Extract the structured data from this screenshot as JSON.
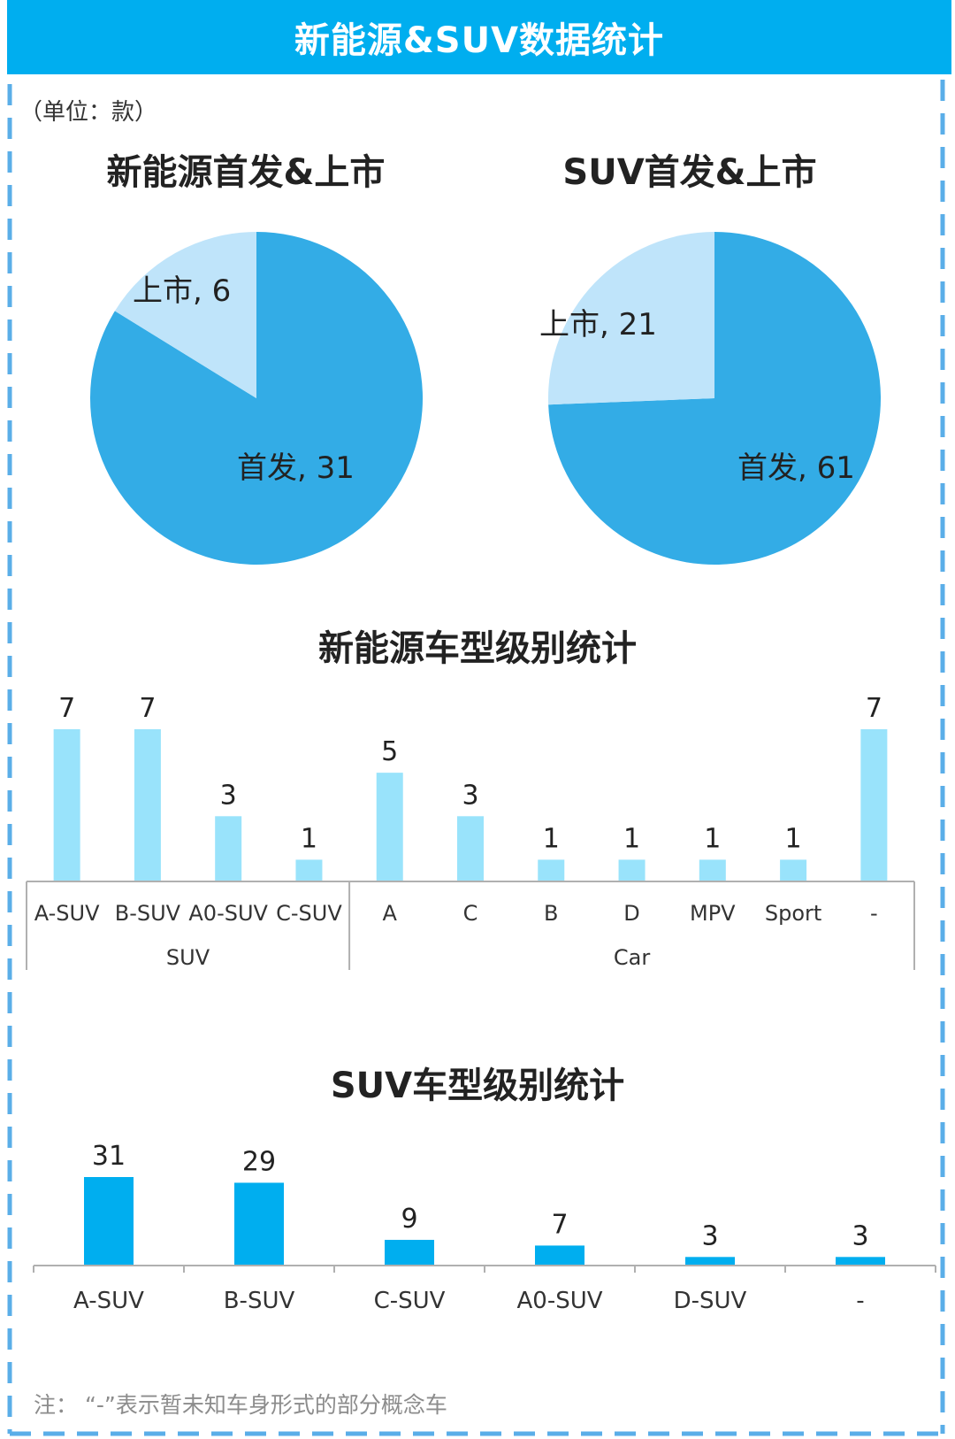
{
  "header": {
    "title": "新能源&SUV数据统计"
  },
  "unit_label": "（单位：款）",
  "footnote": "注：  “-”表示暂未知车身形式的部分概念车",
  "colors": {
    "primary": "#00aeef",
    "pie_dark": "#33ace6",
    "pie_light": "#bfe4fa",
    "bar_light": "#99e3fb",
    "bar_dark": "#00aeef"
  },
  "chart_data": [
    {
      "type": "pie",
      "title": "新能源首发&上市",
      "slices": [
        {
          "label": "首发",
          "value": 31,
          "text": "首发, 31"
        },
        {
          "label": "上市",
          "value": 6,
          "text": "上市, 6"
        }
      ]
    },
    {
      "type": "pie",
      "title": "SUV首发&上市",
      "slices": [
        {
          "label": "首发",
          "value": 61,
          "text": "首发, 61"
        },
        {
          "label": "上市",
          "value": 21,
          "text": "上市, 21"
        }
      ]
    },
    {
      "type": "bar",
      "title": "新能源车型级别统计",
      "categories": [
        "A-SUV",
        "B-SUV",
        "A0-SUV",
        "C-SUV",
        "A",
        "C",
        "B",
        "D",
        "MPV",
        "Sport",
        "-"
      ],
      "groups": [
        {
          "label": "SUV",
          "count": 4
        },
        {
          "label": "Car",
          "count": 7
        }
      ],
      "values": [
        7,
        7,
        3,
        1,
        5,
        3,
        1,
        1,
        1,
        1,
        7
      ],
      "value_labels": [
        "7",
        "7",
        "3",
        "1",
        "5",
        "3",
        "1",
        "1",
        "1",
        "1",
        "7"
      ]
    },
    {
      "type": "bar",
      "title": "SUV车型级别统计",
      "categories": [
        "A-SUV",
        "B-SUV",
        "C-SUV",
        "A0-SUV",
        "D-SUV",
        "-"
      ],
      "values": [
        31,
        29,
        9,
        7,
        3,
        3
      ],
      "value_labels": [
        "31",
        "29",
        "9",
        "7",
        "3",
        "3"
      ]
    }
  ]
}
